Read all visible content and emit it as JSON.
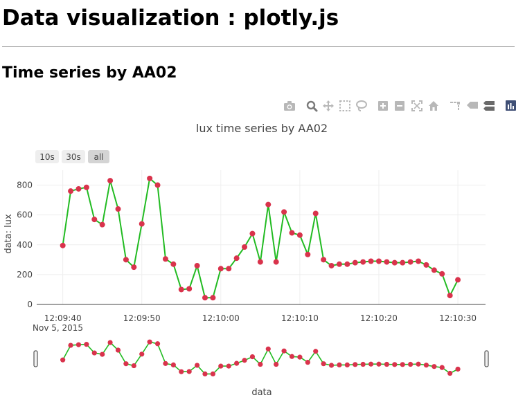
{
  "page": {
    "title": "Data visualization : plotly.js",
    "subtitle": "Time series by AA02"
  },
  "modebar": {
    "icons": [
      "camera-icon",
      "zoom-icon",
      "pan-icon",
      "box-select-icon",
      "lasso-select-icon",
      "zoom-in-icon",
      "zoom-out-icon",
      "autoscale-icon",
      "reset-axes-icon",
      "spike-lines-icon",
      "hover-closest-icon",
      "hover-compare-icon",
      "plotly-logo-icon"
    ],
    "active_icon": "zoom-icon"
  },
  "range_selector": {
    "buttons": [
      "10s",
      "30s",
      "all"
    ],
    "active": "all"
  },
  "colors": {
    "line": "#22bb22",
    "marker": "#d9334c",
    "grid": "#eeeeee",
    "axis": "#444444",
    "button_bg": "#eeeeee",
    "button_active_bg": "#d4d4d4"
  },
  "chart_data": {
    "type": "line",
    "title": "lux time series by AA02",
    "xlabel": "data",
    "ylabel": "data: lux",
    "date": "Nov 5, 2015",
    "x_tick_labels": [
      "12:09:40",
      "12:09:50",
      "12:10:00",
      "12:10:10",
      "12:10:20",
      "12:10:30"
    ],
    "y_ticks": [
      0,
      200,
      400,
      600,
      800
    ],
    "xlim": [
      "2015-11-05 12:09:36.7",
      "2015-11-05 12:10:33.5"
    ],
    "ylim": [
      0,
      900
    ],
    "grid": true,
    "rangeslider": true,
    "x": [
      "12:09:40",
      "12:09:41",
      "12:09:42",
      "12:09:43",
      "12:09:44",
      "12:09:45",
      "12:09:46",
      "12:09:47",
      "12:09:48",
      "12:09:49",
      "12:09:50",
      "12:09:51",
      "12:09:52",
      "12:09:53",
      "12:09:54",
      "12:09:55",
      "12:09:56",
      "12:09:57",
      "12:09:58",
      "12:09:59",
      "12:10:00",
      "12:10:01",
      "12:10:02",
      "12:10:03",
      "12:10:04",
      "12:10:05",
      "12:10:06",
      "12:10:07",
      "12:10:08",
      "12:10:09",
      "12:10:10",
      "12:10:11",
      "12:10:12",
      "12:10:13",
      "12:10:14",
      "12:10:15",
      "12:10:16",
      "12:10:17",
      "12:10:18",
      "12:10:19",
      "12:10:20",
      "12:10:21",
      "12:10:22",
      "12:10:23",
      "12:10:24",
      "12:10:25",
      "12:10:26",
      "12:10:27",
      "12:10:28",
      "12:10:29",
      "12:10:30"
    ],
    "series": [
      {
        "values": [
          395,
          760,
          775,
          785,
          570,
          535,
          830,
          640,
          300,
          250,
          540,
          845,
          800,
          305,
          270,
          100,
          105,
          260,
          45,
          45,
          240,
          240,
          310,
          385,
          475,
          285,
          670,
          285,
          620,
          480,
          465,
          335,
          610,
          300,
          260,
          270,
          270,
          280,
          285,
          290,
          290,
          285,
          280,
          280,
          285,
          290,
          265,
          230,
          205,
          60,
          165
        ]
      }
    ]
  }
}
